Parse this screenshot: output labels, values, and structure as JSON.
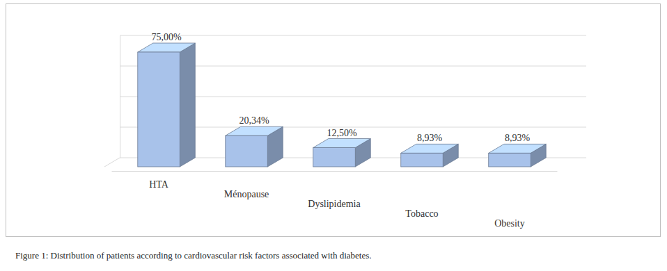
{
  "chart_data": {
    "type": "bar",
    "title": "Figure 1: Distribution of patients according to cardiovascular risk factors associated with diabetes.",
    "categories": [
      "HTA",
      "Ménopause",
      "Dyslipidemia",
      "Tobacco",
      "Obesity"
    ],
    "values": [
      75,
      20.34,
      12.5,
      8.93,
      8.93
    ],
    "value_labels": [
      "75,00%",
      "20,34%",
      "12,50%",
      "8,93%",
      "8,93%"
    ],
    "color": "#a8c2ea",
    "ylim": [
      0,
      80
    ],
    "yticks": [
      0,
      20,
      40,
      60,
      80
    ],
    "grid": true,
    "data_labels": true,
    "tick_labels": "x"
  }
}
